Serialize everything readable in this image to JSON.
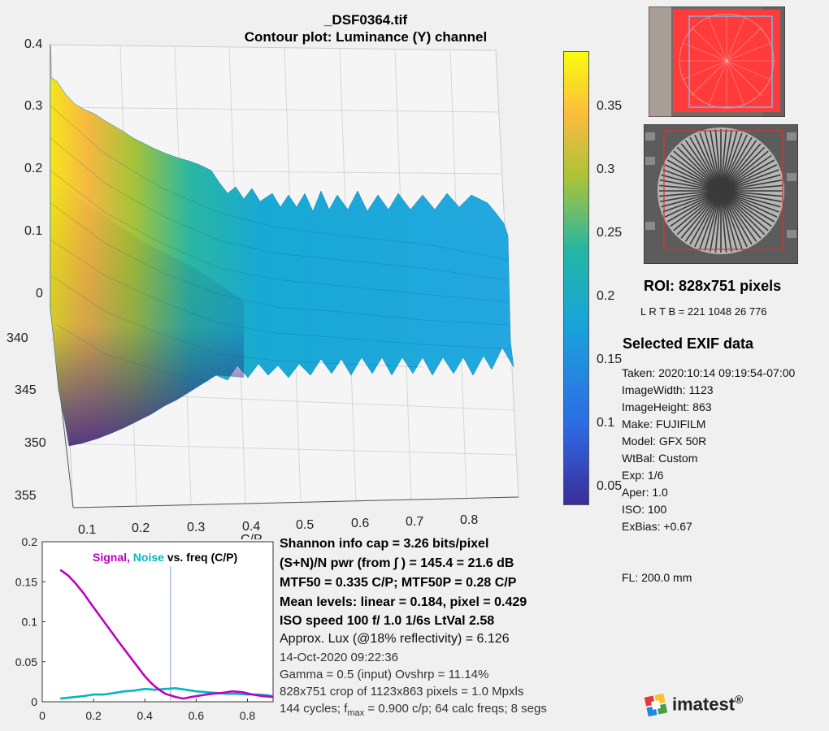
{
  "header": {
    "filename": "_DSF0364.tif",
    "plot_title": "Contour plot:  Luminance (Y) channel"
  },
  "surface_plot": {
    "z_ticks": [
      "0.4",
      "0.3",
      "0.2",
      "0.1",
      "0"
    ],
    "y_ticks": [
      "340",
      "345",
      "350",
      "355"
    ],
    "x_ticks": [
      "0.1",
      "0.2",
      "0.3",
      "0.4",
      "0.5",
      "0.6",
      "0.7",
      "0.8"
    ],
    "x_label_partial": "C/P"
  },
  "colorbar": {
    "ticks": [
      "0.35",
      "0.3",
      "0.25",
      "0.2",
      "0.15",
      "0.1",
      "0.05"
    ],
    "colormap": "parula",
    "colors": [
      "#f9fb0e",
      "#fbbc3d",
      "#a8c339",
      "#24b6a4",
      "#19a4d9",
      "#2d6ce6",
      "#3b2d9a"
    ]
  },
  "roi": {
    "label": "ROI:  828x751 pixels",
    "lrtb": "L R  T B = 221 1048  26 776"
  },
  "exif": {
    "heading": "Selected EXIF data",
    "taken": "Taken: 2020:10:14 09:19:54-07:00",
    "width": "ImageWidth:  1123",
    "height": "ImageHeight:  863",
    "make": "Make:  FUJIFILM",
    "model": "Model: GFX 50R",
    "wtbal": "WtBal:  Custom",
    "exp": "Exp:   1/6",
    "aper": "Aper:  1.0",
    "iso": "ISO:    100",
    "exbias": "ExBias:  +0.67",
    "fl": "FL:   200.0 mm"
  },
  "stats": {
    "shannon": "Shannon info cap =  3.26 bits/pixel",
    "snr": "(S+N)/N pwr (from ∫ ) = 145.4 = 21.6 dB",
    "mtf50": "MTF50 = 0.335 C/P;  MTF50P = 0.28 C/P",
    "mean": "Mean levels:  linear = 0.184,  pixel = 0.429",
    "iso_line": "ISO speed  100   f/ 1.0    1/6s   LtVal 2.58",
    "lux": "Approx. Lux (@18% reflectivity) = 6.126",
    "date": "14-Oct-2020 09:22:36",
    "gamma": "Gamma = 0.5 (input)  Ovshrp = 11.14%",
    "crop": "828x751 crop of 1123x863 pixels = 1.0 Mpxls",
    "cycles_pre": "144 cycles; f",
    "cycles_sub": "max",
    "cycles_post": " = 0.900 c/p;  64 calc freqs;  8 segs"
  },
  "chart_data": [
    {
      "type": "line",
      "title": "Signal, Noise vs. freq (C/P)",
      "title_parts": {
        "signal": "Signal,",
        "noise": "Noise",
        "rest": "vs. freq (C/P)"
      },
      "xlim": [
        0,
        0.9
      ],
      "ylim": [
        0,
        0.2
      ],
      "x_ticks": [
        0,
        0.2,
        0.4,
        0.6,
        0.8
      ],
      "y_ticks": [
        0,
        0.05,
        0.1,
        0.15,
        0.2
      ],
      "x_tick_labels": [
        "0",
        "0.2",
        "0.4",
        "0.6",
        "0.8"
      ],
      "y_tick_labels": [
        "0",
        "0.05",
        "0.1",
        "0.15",
        "0.2"
      ],
      "vline_x": 0.5,
      "series": [
        {
          "name": "Signal",
          "color": "#c000c0",
          "x": [
            0.07,
            0.1,
            0.13,
            0.16,
            0.2,
            0.25,
            0.3,
            0.35,
            0.4,
            0.42,
            0.44,
            0.46,
            0.48,
            0.5,
            0.52,
            0.55,
            0.58,
            0.62,
            0.66,
            0.7,
            0.74,
            0.78,
            0.82,
            0.86,
            0.9
          ],
          "y": [
            0.165,
            0.158,
            0.148,
            0.136,
            0.118,
            0.096,
            0.074,
            0.053,
            0.032,
            0.025,
            0.019,
            0.014,
            0.01,
            0.008,
            0.006,
            0.004,
            0.006,
            0.008,
            0.01,
            0.011,
            0.013,
            0.012,
            0.009,
            0.007,
            0.006
          ]
        },
        {
          "name": "Noise",
          "color": "#00b7c3",
          "x": [
            0.07,
            0.1,
            0.13,
            0.16,
            0.2,
            0.24,
            0.28,
            0.32,
            0.36,
            0.4,
            0.44,
            0.48,
            0.52,
            0.56,
            0.6,
            0.64,
            0.68,
            0.72,
            0.76,
            0.8,
            0.84,
            0.88,
            0.9
          ],
          "y": [
            0.004,
            0.005,
            0.006,
            0.007,
            0.009,
            0.009,
            0.011,
            0.013,
            0.014,
            0.016,
            0.015,
            0.016,
            0.017,
            0.015,
            0.013,
            0.012,
            0.011,
            0.01,
            0.01,
            0.009,
            0.009,
            0.008,
            0.007
          ]
        }
      ]
    }
  ]
}
